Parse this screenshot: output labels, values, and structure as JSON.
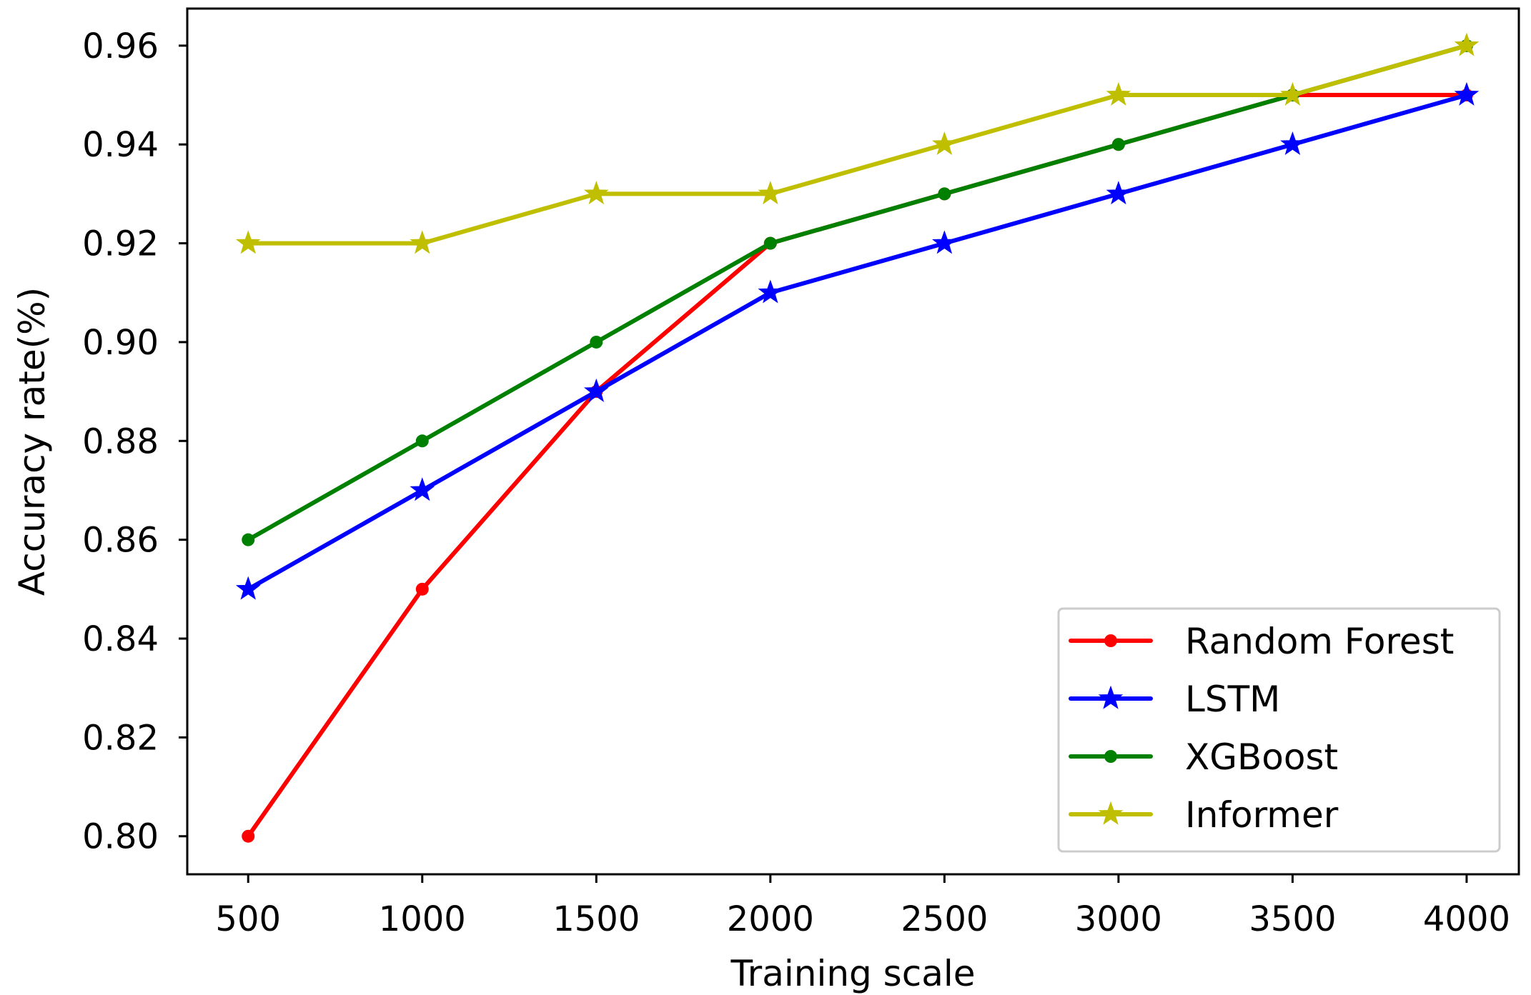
{
  "chart_data": {
    "type": "line",
    "title": "",
    "xlabel": "Training scale",
    "ylabel": "Accuracy rate(%)",
    "x": [
      500,
      1000,
      1500,
      2000,
      2500,
      3000,
      3500,
      4000
    ],
    "xticks": [
      "500",
      "1000",
      "1500",
      "2000",
      "2500",
      "3000",
      "3500",
      "4000"
    ],
    "yticks": [
      "0.80",
      "0.82",
      "0.84",
      "0.86",
      "0.88",
      "0.90",
      "0.92",
      "0.94",
      "0.96"
    ],
    "ytick_values": [
      0.8,
      0.82,
      0.84,
      0.86,
      0.88,
      0.9,
      0.92,
      0.94,
      0.96
    ],
    "xlim": [
      325,
      4150
    ],
    "ylim": [
      0.7923,
      0.9675
    ],
    "grid": false,
    "legend_position": "lower-right",
    "series": [
      {
        "name": "Random Forest",
        "color": "#ff0000",
        "marker": "circle",
        "values": [
          0.8,
          0.85,
          0.89,
          0.92,
          0.93,
          0.94,
          0.95,
          0.95
        ]
      },
      {
        "name": "LSTM",
        "color": "#0000ff",
        "marker": "star",
        "values": [
          0.85,
          0.87,
          0.89,
          0.91,
          0.92,
          0.93,
          0.94,
          0.95
        ]
      },
      {
        "name": "XGBoost",
        "color": "#008000",
        "marker": "circle",
        "values": [
          0.86,
          0.88,
          0.9,
          0.92,
          0.93,
          0.94,
          0.95,
          0.96
        ]
      },
      {
        "name": "Informer",
        "color": "#bfbf00",
        "marker": "star",
        "values": [
          0.92,
          0.92,
          0.93,
          0.93,
          0.94,
          0.95,
          0.95,
          0.96
        ]
      }
    ]
  }
}
